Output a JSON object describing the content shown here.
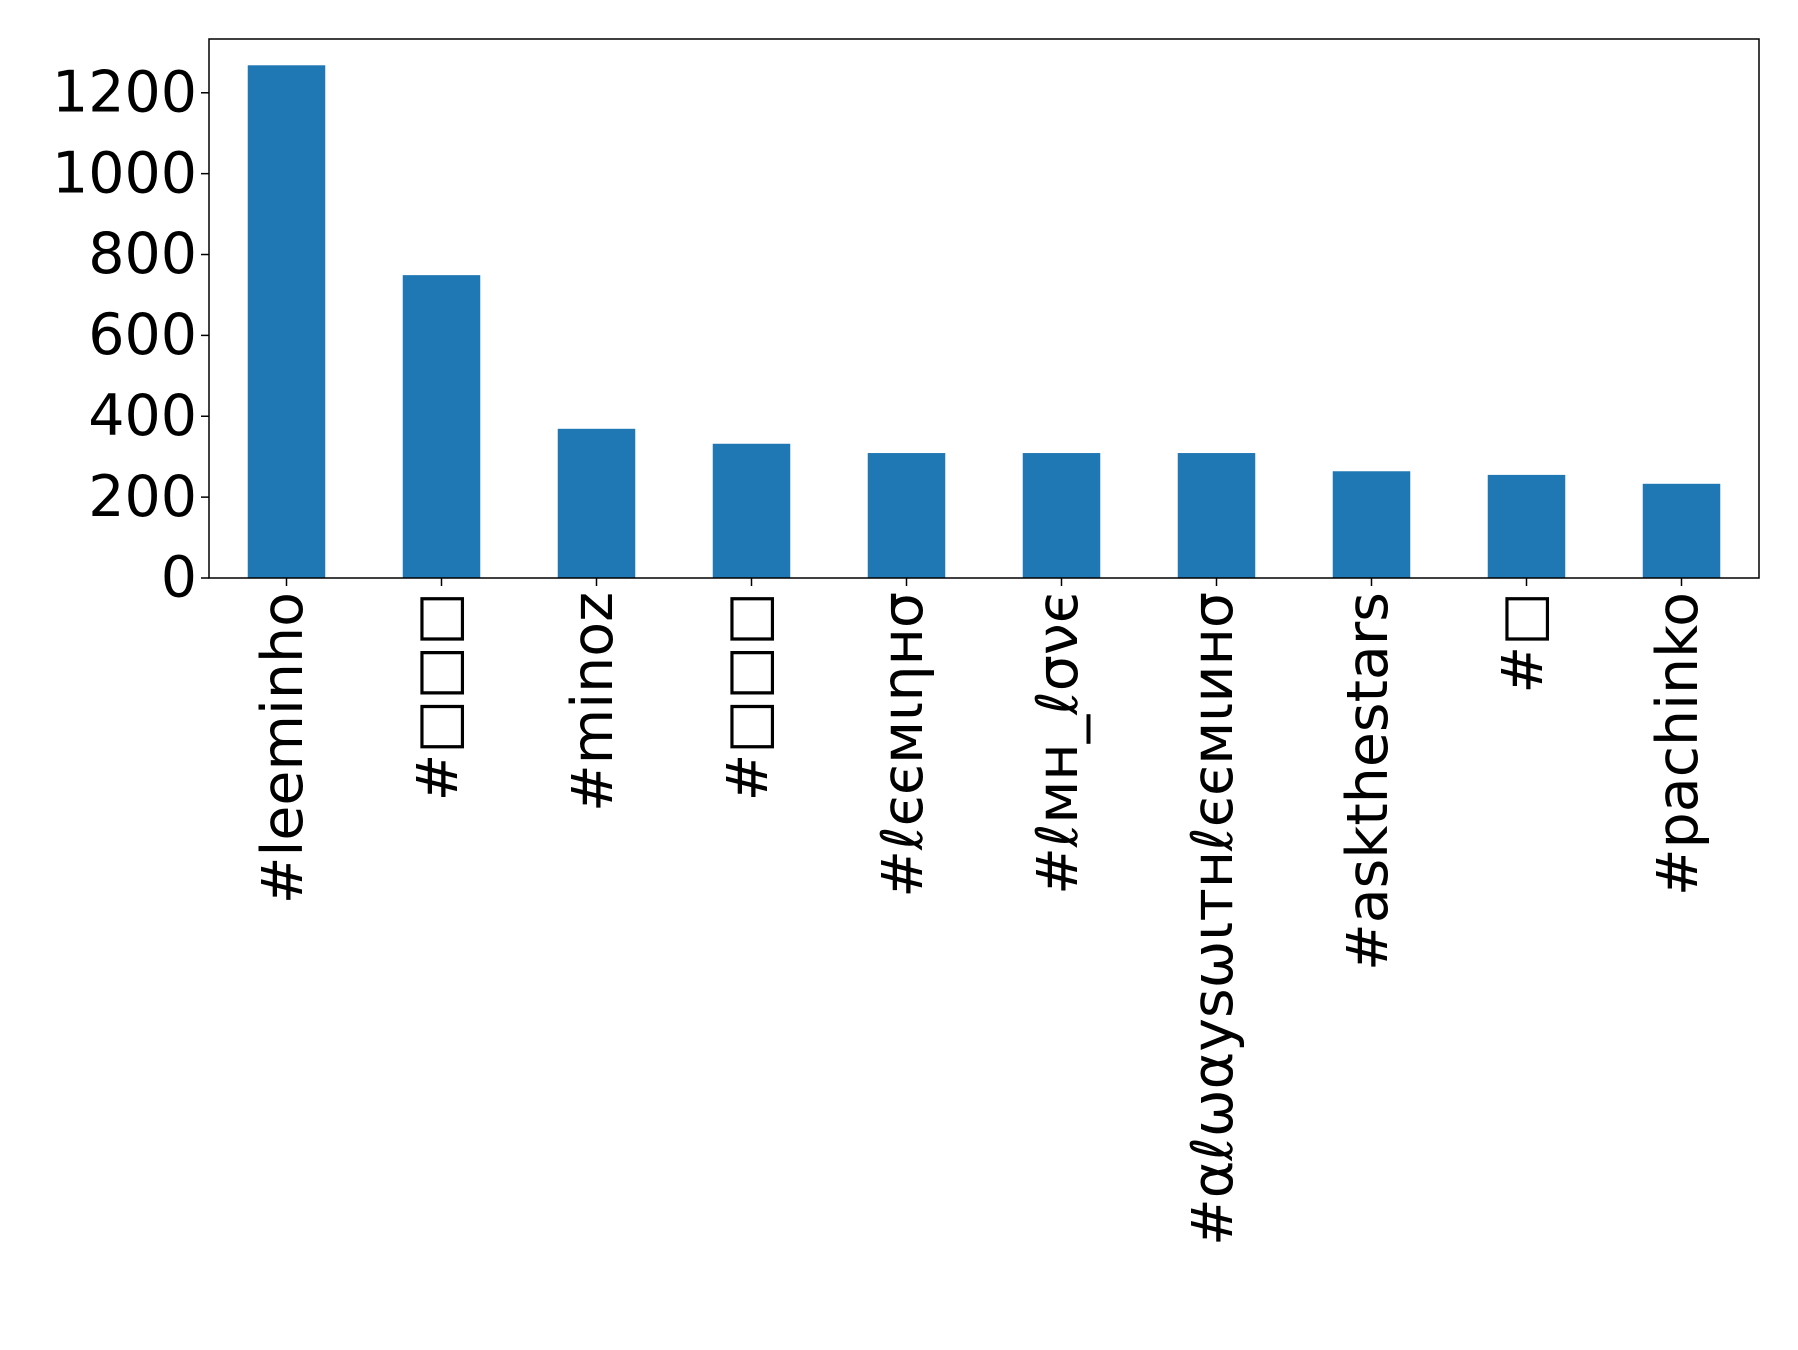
{
  "chart_data": {
    "type": "bar",
    "categories": [
      "#leeminho",
      "#□□□",
      "#minoz",
      "#□□□",
      "#ℓєємιηнσ",
      "#ℓмн_ℓσνє",
      "#αℓωαуѕωιтнℓєємιинσ",
      "#askthestars",
      "#□",
      "#pachinko"
    ],
    "values": [
      1268,
      749,
      369,
      332,
      309,
      309,
      309,
      264,
      255,
      233
    ],
    "color": "#1f77b4",
    "ylim": [
      0,
      1333
    ],
    "yticks": [
      0,
      200,
      400,
      600,
      800,
      1000,
      1200
    ],
    "grid": false
  }
}
